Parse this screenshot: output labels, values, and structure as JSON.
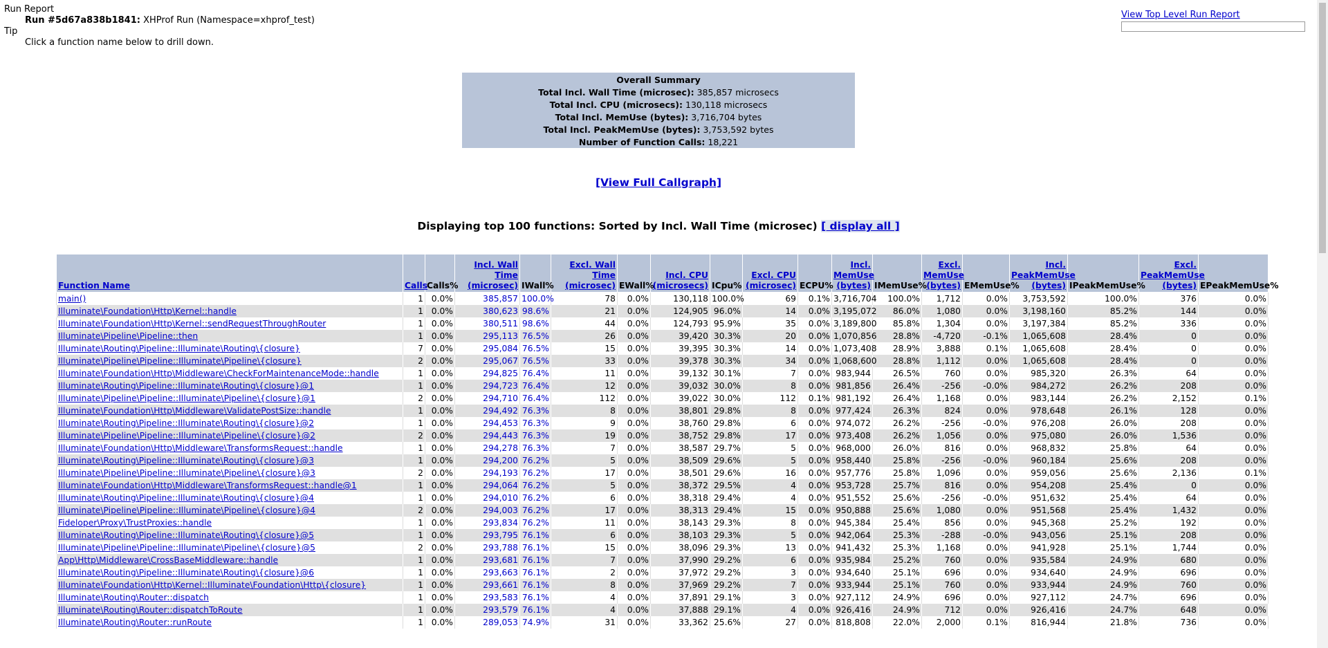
{
  "header": {
    "report_label": "Run Report",
    "run_id_label": "Run #5d67a838b1841:",
    "run_desc": "XHProf Run (Namespace=xhprof_test)",
    "tip_label": "Tip",
    "tip_text": "Click a function name below to drill down.",
    "top_level_link": "View Top Level Run Report"
  },
  "summary": {
    "title": "Overall Summary",
    "rows": [
      {
        "label": "Total Incl. Wall Time (microsec):",
        "value": "385,857 microsecs"
      },
      {
        "label": "Total Incl. CPU (microsecs):",
        "value": "130,118 microsecs"
      },
      {
        "label": "Total Incl. MemUse (bytes):",
        "value": "3,716,704 bytes"
      },
      {
        "label": "Total Incl. PeakMemUse (bytes):",
        "value": "3,753,592 bytes"
      },
      {
        "label": "Number of Function Calls:",
        "value": "18,221"
      }
    ]
  },
  "callgraph_link": "[View Full Callgraph]",
  "display": {
    "text": "Displaying top 100 functions: Sorted by Incl. Wall Time (microsec)",
    "link": "[ display all ]"
  },
  "table": {
    "columns": [
      {
        "label": "Function Name",
        "link": true
      },
      {
        "label": "Calls",
        "link": true
      },
      {
        "label": "Calls%",
        "link": false
      },
      {
        "label": "Incl. Wall Time (microsec)",
        "link": true
      },
      {
        "label": "IWall%",
        "link": false
      },
      {
        "label": "Excl. Wall Time (microsec)",
        "link": true
      },
      {
        "label": "EWall%",
        "link": false
      },
      {
        "label": "Incl. CPU (microsecs)",
        "link": true
      },
      {
        "label": "ICpu%",
        "link": false
      },
      {
        "label": "Excl. CPU (microsec)",
        "link": true
      },
      {
        "label": "ECPU%",
        "link": false
      },
      {
        "label": "Incl. MemUse (bytes)",
        "link": true
      },
      {
        "label": "IMemUse%",
        "link": false
      },
      {
        "label": "Excl. MemUse (bytes)",
        "link": true
      },
      {
        "label": "EMemUse%",
        "link": false
      },
      {
        "label": "Incl. PeakMemUse (bytes)",
        "link": true
      },
      {
        "label": "IPeakMemUse%",
        "link": false
      },
      {
        "label": "Excl. PeakMemUse (bytes)",
        "link": true
      },
      {
        "label": "EPeakMemUse%",
        "link": false
      }
    ],
    "rows": [
      [
        "main()",
        "1",
        "0.0%",
        "385,857",
        "100.0%",
        "78",
        "0.0%",
        "130,118",
        "100.0%",
        "69",
        "0.1%",
        "3,716,704",
        "100.0%",
        "1,712",
        "0.0%",
        "3,753,592",
        "100.0%",
        "376",
        "0.0%"
      ],
      [
        "Illuminate\\Foundation\\Http\\Kernel::handle",
        "1",
        "0.0%",
        "380,623",
        "98.6%",
        "21",
        "0.0%",
        "124,905",
        "96.0%",
        "14",
        "0.0%",
        "3,195,072",
        "86.0%",
        "1,080",
        "0.0%",
        "3,198,160",
        "85.2%",
        "144",
        "0.0%"
      ],
      [
        "Illuminate\\Foundation\\Http\\Kernel::sendRequestThroughRouter",
        "1",
        "0.0%",
        "380,511",
        "98.6%",
        "44",
        "0.0%",
        "124,793",
        "95.9%",
        "35",
        "0.0%",
        "3,189,800",
        "85.8%",
        "1,304",
        "0.0%",
        "3,197,384",
        "85.2%",
        "336",
        "0.0%"
      ],
      [
        "Illuminate\\Pipeline\\Pipeline::then",
        "1",
        "0.0%",
        "295,113",
        "76.5%",
        "26",
        "0.0%",
        "39,420",
        "30.3%",
        "20",
        "0.0%",
        "1,070,856",
        "28.8%",
        "-4,720",
        "-0.1%",
        "1,065,608",
        "28.4%",
        "0",
        "0.0%"
      ],
      [
        "Illuminate\\Routing\\Pipeline::Illuminate\\Routing\\{closure}",
        "7",
        "0.0%",
        "295,084",
        "76.5%",
        "15",
        "0.0%",
        "39,395",
        "30.3%",
        "14",
        "0.0%",
        "1,073,408",
        "28.9%",
        "3,888",
        "0.1%",
        "1,065,608",
        "28.4%",
        "0",
        "0.0%"
      ],
      [
        "Illuminate\\Pipeline\\Pipeline::Illuminate\\Pipeline\\{closure}",
        "2",
        "0.0%",
        "295,067",
        "76.5%",
        "33",
        "0.0%",
        "39,378",
        "30.3%",
        "34",
        "0.0%",
        "1,068,600",
        "28.8%",
        "1,112",
        "0.0%",
        "1,065,608",
        "28.4%",
        "0",
        "0.0%"
      ],
      [
        "Illuminate\\Foundation\\Http\\Middleware\\CheckForMaintenanceMode::handle",
        "1",
        "0.0%",
        "294,825",
        "76.4%",
        "11",
        "0.0%",
        "39,132",
        "30.1%",
        "7",
        "0.0%",
        "983,944",
        "26.5%",
        "760",
        "0.0%",
        "985,320",
        "26.3%",
        "64",
        "0.0%"
      ],
      [
        "Illuminate\\Routing\\Pipeline::Illuminate\\Routing\\{closure}@1",
        "1",
        "0.0%",
        "294,723",
        "76.4%",
        "12",
        "0.0%",
        "39,032",
        "30.0%",
        "8",
        "0.0%",
        "981,856",
        "26.4%",
        "-256",
        "-0.0%",
        "984,272",
        "26.2%",
        "208",
        "0.0%"
      ],
      [
        "Illuminate\\Pipeline\\Pipeline::Illuminate\\Pipeline\\{closure}@1",
        "2",
        "0.0%",
        "294,710",
        "76.4%",
        "112",
        "0.0%",
        "39,022",
        "30.0%",
        "112",
        "0.1%",
        "981,192",
        "26.4%",
        "1,168",
        "0.0%",
        "983,144",
        "26.2%",
        "2,152",
        "0.1%"
      ],
      [
        "Illuminate\\Foundation\\Http\\Middleware\\ValidatePostSize::handle",
        "1",
        "0.0%",
        "294,492",
        "76.3%",
        "8",
        "0.0%",
        "38,801",
        "29.8%",
        "8",
        "0.0%",
        "977,424",
        "26.3%",
        "824",
        "0.0%",
        "978,648",
        "26.1%",
        "128",
        "0.0%"
      ],
      [
        "Illuminate\\Routing\\Pipeline::Illuminate\\Routing\\{closure}@2",
        "1",
        "0.0%",
        "294,453",
        "76.3%",
        "9",
        "0.0%",
        "38,760",
        "29.8%",
        "6",
        "0.0%",
        "974,072",
        "26.2%",
        "-256",
        "-0.0%",
        "976,208",
        "26.0%",
        "208",
        "0.0%"
      ],
      [
        "Illuminate\\Pipeline\\Pipeline::Illuminate\\Pipeline\\{closure}@2",
        "2",
        "0.0%",
        "294,443",
        "76.3%",
        "19",
        "0.0%",
        "38,752",
        "29.8%",
        "17",
        "0.0%",
        "973,408",
        "26.2%",
        "1,056",
        "0.0%",
        "975,080",
        "26.0%",
        "1,536",
        "0.0%"
      ],
      [
        "Illuminate\\Foundation\\Http\\Middleware\\TransformsRequest::handle",
        "1",
        "0.0%",
        "294,278",
        "76.3%",
        "7",
        "0.0%",
        "38,587",
        "29.7%",
        "5",
        "0.0%",
        "968,000",
        "26.0%",
        "816",
        "0.0%",
        "968,832",
        "25.8%",
        "64",
        "0.0%"
      ],
      [
        "Illuminate\\Routing\\Pipeline::Illuminate\\Routing\\{closure}@3",
        "1",
        "0.0%",
        "294,200",
        "76.2%",
        "5",
        "0.0%",
        "38,509",
        "29.6%",
        "5",
        "0.0%",
        "958,440",
        "25.8%",
        "-256",
        "-0.0%",
        "960,184",
        "25.6%",
        "208",
        "0.0%"
      ],
      [
        "Illuminate\\Pipeline\\Pipeline::Illuminate\\Pipeline\\{closure}@3",
        "2",
        "0.0%",
        "294,193",
        "76.2%",
        "17",
        "0.0%",
        "38,501",
        "29.6%",
        "16",
        "0.0%",
        "957,776",
        "25.8%",
        "1,096",
        "0.0%",
        "959,056",
        "25.6%",
        "2,136",
        "0.1%"
      ],
      [
        "Illuminate\\Foundation\\Http\\Middleware\\TransformsRequest::handle@1",
        "1",
        "0.0%",
        "294,064",
        "76.2%",
        "5",
        "0.0%",
        "38,372",
        "29.5%",
        "4",
        "0.0%",
        "953,728",
        "25.7%",
        "816",
        "0.0%",
        "954,208",
        "25.4%",
        "0",
        "0.0%"
      ],
      [
        "Illuminate\\Routing\\Pipeline::Illuminate\\Routing\\{closure}@4",
        "1",
        "0.0%",
        "294,010",
        "76.2%",
        "6",
        "0.0%",
        "38,318",
        "29.4%",
        "4",
        "0.0%",
        "951,552",
        "25.6%",
        "-256",
        "-0.0%",
        "951,632",
        "25.4%",
        "64",
        "0.0%"
      ],
      [
        "Illuminate\\Pipeline\\Pipeline::Illuminate\\Pipeline\\{closure}@4",
        "2",
        "0.0%",
        "294,003",
        "76.2%",
        "17",
        "0.0%",
        "38,313",
        "29.4%",
        "15",
        "0.0%",
        "950,888",
        "25.6%",
        "1,080",
        "0.0%",
        "951,568",
        "25.4%",
        "1,432",
        "0.0%"
      ],
      [
        "Fideloper\\Proxy\\TrustProxies::handle",
        "1",
        "0.0%",
        "293,834",
        "76.2%",
        "11",
        "0.0%",
        "38,143",
        "29.3%",
        "8",
        "0.0%",
        "945,384",
        "25.4%",
        "856",
        "0.0%",
        "945,368",
        "25.2%",
        "192",
        "0.0%"
      ],
      [
        "Illuminate\\Routing\\Pipeline::Illuminate\\Routing\\{closure}@5",
        "1",
        "0.0%",
        "293,795",
        "76.1%",
        "6",
        "0.0%",
        "38,103",
        "29.3%",
        "5",
        "0.0%",
        "942,064",
        "25.3%",
        "-288",
        "-0.0%",
        "943,056",
        "25.1%",
        "208",
        "0.0%"
      ],
      [
        "Illuminate\\Pipeline\\Pipeline::Illuminate\\Pipeline\\{closure}@5",
        "2",
        "0.0%",
        "293,788",
        "76.1%",
        "15",
        "0.0%",
        "38,096",
        "29.3%",
        "13",
        "0.0%",
        "941,432",
        "25.3%",
        "1,168",
        "0.0%",
        "941,928",
        "25.1%",
        "1,744",
        "0.0%"
      ],
      [
        "App\\Http\\Middleware\\CrossBaseMiddleware::handle",
        "1",
        "0.0%",
        "293,681",
        "76.1%",
        "7",
        "0.0%",
        "37,990",
        "29.2%",
        "6",
        "0.0%",
        "935,984",
        "25.2%",
        "760",
        "0.0%",
        "935,584",
        "24.9%",
        "680",
        "0.0%"
      ],
      [
        "Illuminate\\Routing\\Pipeline::Illuminate\\Routing\\{closure}@6",
        "1",
        "0.0%",
        "293,663",
        "76.1%",
        "2",
        "0.0%",
        "37,972",
        "29.2%",
        "3",
        "0.0%",
        "934,640",
        "25.1%",
        "696",
        "0.0%",
        "934,640",
        "24.9%",
        "696",
        "0.0%"
      ],
      [
        "Illuminate\\Foundation\\Http\\Kernel::Illuminate\\Foundation\\Http\\{closure}",
        "1",
        "0.0%",
        "293,661",
        "76.1%",
        "8",
        "0.0%",
        "37,969",
        "29.2%",
        "7",
        "0.0%",
        "933,944",
        "25.1%",
        "760",
        "0.0%",
        "933,944",
        "24.9%",
        "760",
        "0.0%"
      ],
      [
        "Illuminate\\Routing\\Router::dispatch",
        "1",
        "0.0%",
        "293,583",
        "76.1%",
        "4",
        "0.0%",
        "37,891",
        "29.1%",
        "3",
        "0.0%",
        "927,112",
        "24.9%",
        "696",
        "0.0%",
        "927,112",
        "24.7%",
        "696",
        "0.0%"
      ],
      [
        "Illuminate\\Routing\\Router::dispatchToRoute",
        "1",
        "0.0%",
        "293,579",
        "76.1%",
        "4",
        "0.0%",
        "37,888",
        "29.1%",
        "4",
        "0.0%",
        "926,416",
        "24.9%",
        "712",
        "0.0%",
        "926,416",
        "24.7%",
        "648",
        "0.0%"
      ],
      [
        "Illuminate\\Routing\\Router::runRoute",
        "1",
        "0.0%",
        "289,053",
        "74.9%",
        "31",
        "0.0%",
        "33,362",
        "25.6%",
        "27",
        "0.0%",
        "818,808",
        "22.0%",
        "2,000",
        "0.1%",
        "816,944",
        "21.8%",
        "736",
        "0.0%"
      ]
    ]
  }
}
